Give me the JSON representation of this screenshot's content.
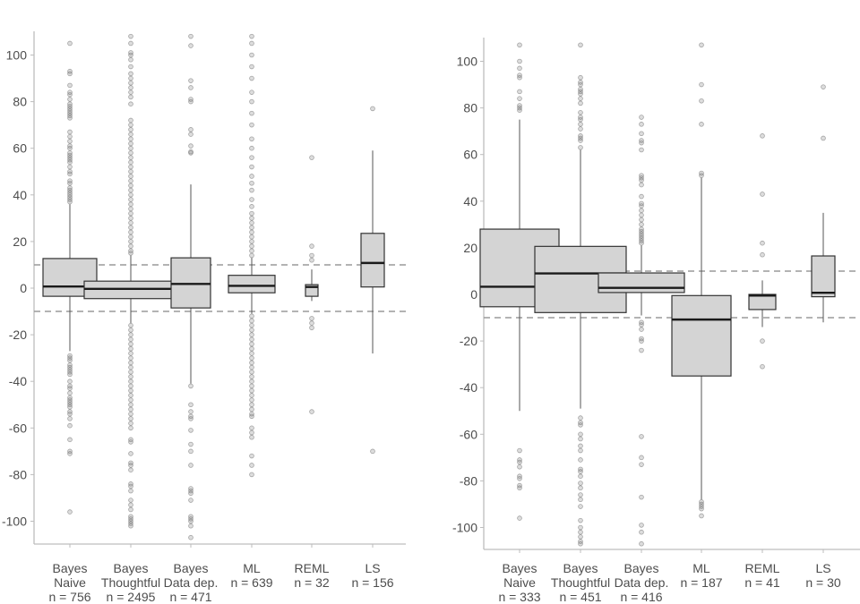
{
  "chart_data": [
    {
      "type": "boxplot",
      "title": "",
      "xlabel": "",
      "ylabel": "",
      "ylim": [
        -110,
        110
      ],
      "yticks": [
        100,
        80,
        60,
        40,
        20,
        0,
        -20,
        -40,
        -60,
        -80,
        -100
      ],
      "ytick_labels": [
        "100",
        "80",
        "60",
        "40",
        "20",
        "0",
        "-20",
        "-40",
        "-60",
        "-80",
        "-100"
      ],
      "reference_lines": [
        10,
        -10
      ],
      "grid": false,
      "categories": [
        {
          "line1": "Bayes",
          "line2": "Naive",
          "line3": "n = 756"
        },
        {
          "line1": "Bayes",
          "line2": "Thoughtful",
          "line3": "n = 2495"
        },
        {
          "line1": "Bayes",
          "line2": "Data dep.",
          "line3": "n = 471"
        },
        {
          "line1": "ML",
          "line2": "n = 639",
          "line3": ""
        },
        {
          "line1": "REML",
          "line2": "n = 32",
          "line3": ""
        },
        {
          "line1": "LS",
          "line2": "n = 156",
          "line3": ""
        }
      ],
      "boxes": [
        {
          "q1": -3.5,
          "median": 0.7,
          "q3": 12.7,
          "whisker_low": -27,
          "whisker_high": 36,
          "outliers": [
            37,
            38,
            39,
            40,
            41,
            42,
            43,
            45,
            46,
            49,
            50,
            52,
            54,
            55,
            56,
            57,
            58,
            60,
            61,
            63,
            65,
            67,
            73,
            74,
            75,
            76,
            77,
            78,
            79,
            81,
            83,
            84,
            87,
            92,
            93,
            105,
            -29,
            -30,
            -31,
            -33,
            -34,
            -35,
            -36,
            -37,
            -40,
            -42,
            -43,
            -45,
            -47,
            -48,
            -49,
            -50,
            -51,
            -53,
            -54,
            -56,
            -59,
            -65,
            -70,
            -71,
            -96
          ]
        },
        {
          "q1": -4.5,
          "median": -0.3,
          "q3": 3,
          "whisker_low": -15,
          "whisker_high": 14,
          "outliers": [
            15,
            16,
            18,
            20,
            22,
            24,
            26,
            28,
            30,
            32,
            34,
            36,
            38,
            40,
            42,
            44,
            46,
            48,
            50,
            52,
            54,
            56,
            58,
            60,
            62,
            64,
            66,
            68,
            70,
            72,
            79,
            82,
            84,
            86,
            88,
            90,
            92,
            95,
            98,
            100,
            101,
            105,
            108,
            -16,
            -18,
            -20,
            -22,
            -24,
            -26,
            -28,
            -30,
            -32,
            -34,
            -36,
            -38,
            -40,
            -42,
            -44,
            -46,
            -48,
            -50,
            -52,
            -54,
            -56,
            -58,
            -60,
            -65,
            -66,
            -71,
            -75,
            -76,
            -78,
            -84,
            -85,
            -87,
            -91,
            -93,
            -95,
            -98,
            -99,
            -100,
            -101,
            -102
          ]
        },
        {
          "q1": -8.5,
          "median": 1.8,
          "q3": 13,
          "whisker_low": -41,
          "whisker_high": 44.5,
          "outliers": [
            58,
            58.5,
            61,
            66,
            68,
            80,
            81,
            86,
            89,
            104,
            108,
            -42,
            -50,
            -53,
            -55,
            -56,
            -61,
            -67,
            -70,
            -76,
            -86,
            -87,
            -88,
            -91,
            -98,
            -99,
            -100,
            -102,
            -107
          ]
        },
        {
          "q1": -2,
          "median": 1,
          "q3": 5.5,
          "whisker_low": -11,
          "whisker_high": 13,
          "outliers": [
            14,
            16,
            18,
            20,
            22,
            24,
            26,
            28,
            30,
            32,
            35,
            38,
            42,
            45,
            48,
            52,
            56,
            60,
            64,
            70,
            75,
            80,
            84,
            90,
            95,
            100,
            105,
            108,
            -12,
            -14,
            -16,
            -18,
            -20,
            -22,
            -24,
            -26,
            -28,
            -30,
            -32,
            -34,
            -36,
            -38,
            -40,
            -42,
            -44,
            -46,
            -48,
            -50,
            -52,
            -54,
            -55,
            -60,
            -62,
            -64,
            -72,
            -76,
            -80
          ]
        },
        {
          "q1": -3.5,
          "median": 0.5,
          "q3": 1.5,
          "whisker_low": -5.5,
          "whisker_high": 8,
          "outliers": [
            12,
            14,
            18,
            56,
            -13,
            -15,
            -17,
            -53
          ]
        },
        {
          "q1": 0.5,
          "median": 10.8,
          "q3": 23.5,
          "whisker_low": -28,
          "whisker_high": 59,
          "outliers": [
            77,
            -70
          ]
        }
      ]
    },
    {
      "type": "boxplot",
      "title": "",
      "xlabel": "",
      "ylabel": "",
      "ylim": [
        -110,
        110
      ],
      "yticks": [
        100,
        80,
        60,
        40,
        20,
        0,
        -20,
        -40,
        -60,
        -80,
        -100
      ],
      "ytick_labels": [
        "100",
        "80",
        "60",
        "40",
        "20",
        "0",
        "-20",
        "-40",
        "-60",
        "-80",
        "-100"
      ],
      "reference_lines": [
        10,
        -10
      ],
      "grid": false,
      "categories": [
        {
          "line1": "Bayes",
          "line2": "Naive",
          "line3": "n = 333"
        },
        {
          "line1": "Bayes",
          "line2": "Thoughtful",
          "line3": "n = 451"
        },
        {
          "line1": "Bayes",
          "line2": "Data dep.",
          "line3": "n = 416"
        },
        {
          "line1": "ML",
          "line2": "n = 187",
          "line3": ""
        },
        {
          "line1": "REML",
          "line2": "n = 41",
          "line3": ""
        },
        {
          "line1": "LS",
          "line2": "n = 30",
          "line3": ""
        }
      ],
      "boxes": [
        {
          "q1": -5.3,
          "median": 3.3,
          "q3": 28,
          "whisker_low": -50,
          "whisker_high": 75,
          "outliers": [
            79,
            80,
            81,
            84,
            87,
            93,
            94,
            97,
            100,
            107,
            -67,
            -71,
            -72,
            -74,
            -78,
            -79,
            -82,
            -83,
            -96
          ]
        },
        {
          "q1": -7.8,
          "median": 9,
          "q3": 20.6,
          "whisker_low": -49,
          "whisker_high": 62,
          "outliers": [
            63,
            66,
            67,
            68,
            71,
            73,
            75,
            76,
            78,
            82,
            84,
            86,
            87,
            88,
            90,
            91,
            93,
            107,
            -53,
            -55,
            -56,
            -60,
            -62,
            -65,
            -67,
            -71,
            -75,
            -76,
            -78,
            -81,
            -83,
            -86,
            -88,
            -91,
            -97,
            -100,
            -102,
            -104,
            -106,
            -107
          ]
        },
        {
          "q1": 0.8,
          "median": 2.8,
          "q3": 9.2,
          "whisker_low": -9,
          "whisker_high": 21,
          "outliers": [
            22,
            23,
            24,
            25,
            26,
            27,
            28,
            30,
            32,
            34,
            36,
            38,
            39,
            42,
            47,
            49,
            50,
            51,
            62,
            65,
            66,
            69,
            73,
            76,
            -12,
            -13,
            -15,
            -19,
            -20,
            -24,
            -61,
            -70,
            -73,
            -87,
            -99,
            -102,
            -107
          ]
        },
        {
          "q1": -35,
          "median": -10.8,
          "q3": -0.5,
          "whisker_low": -88,
          "whisker_high": 50,
          "outliers": [
            51,
            52,
            73,
            83,
            90,
            107,
            -89,
            -90,
            -91,
            -92,
            -95
          ]
        },
        {
          "q1": -6.5,
          "median": -0.5,
          "q3": 0,
          "whisker_low": -14,
          "whisker_high": 6,
          "outliers": [
            17,
            22,
            43,
            68,
            -20,
            -31
          ]
        },
        {
          "q1": -1,
          "median": 0.7,
          "q3": 16.5,
          "whisker_low": -12,
          "whisker_high": 35,
          "outliers": [
            67,
            89
          ]
        }
      ]
    }
  ]
}
